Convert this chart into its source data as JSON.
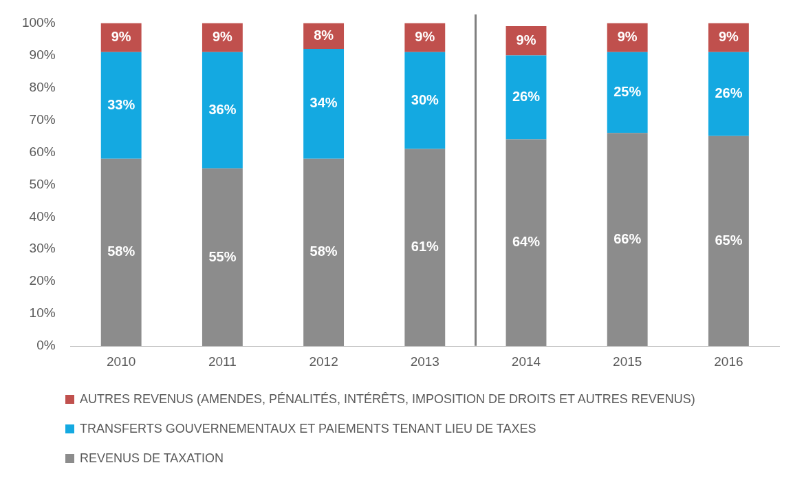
{
  "chart_data": {
    "type": "bar",
    "stacked": true,
    "categories": [
      "2010",
      "2011",
      "2012",
      "2013",
      "2014",
      "2015",
      "2016"
    ],
    "series": [
      {
        "name": "REVENUS DE TAXATION",
        "color": "#8c8c8c",
        "values": [
          58,
          55,
          58,
          61,
          64,
          66,
          65
        ],
        "value_labels": [
          "58%",
          "55%",
          "58%",
          "61%",
          "64%",
          "66%",
          "65%"
        ]
      },
      {
        "name": "TRANSFERTS GOUVERNEMENTAUX ET PAIEMENTS TENANT LIEU DE TAXES",
        "color": "#14a9e1",
        "values": [
          33,
          36,
          34,
          30,
          26,
          25,
          26
        ],
        "value_labels": [
          "33%",
          "36%",
          "34%",
          "30%",
          "26%",
          "25%",
          "26%"
        ]
      },
      {
        "name": "AUTRES REVENUS (AMENDES, PÉNALITÉS, INTÉRÊTS, IMPOSITION DE DROITS ET AUTRES REVENUS)",
        "color": "#c0504d",
        "values": [
          9,
          9,
          8,
          9,
          9,
          9,
          9
        ],
        "value_labels": [
          "9%",
          "9%",
          "8%",
          "9%",
          "9%",
          "9%",
          "9%"
        ]
      }
    ],
    "ylim": [
      0,
      100
    ],
    "yticks": [
      {
        "value": 0,
        "label": "0%"
      },
      {
        "value": 10,
        "label": "10%"
      },
      {
        "value": 20,
        "label": "20%"
      },
      {
        "value": 30,
        "label": "30%"
      },
      {
        "value": 40,
        "label": "40%"
      },
      {
        "value": 50,
        "label": "50%"
      },
      {
        "value": 60,
        "label": "60%"
      },
      {
        "value": 70,
        "label": "70%"
      },
      {
        "value": 80,
        "label": "80%"
      },
      {
        "value": 90,
        "label": "90%"
      },
      {
        "value": 100,
        "label": "100%"
      }
    ],
    "grid": false,
    "legend": "bottom"
  }
}
